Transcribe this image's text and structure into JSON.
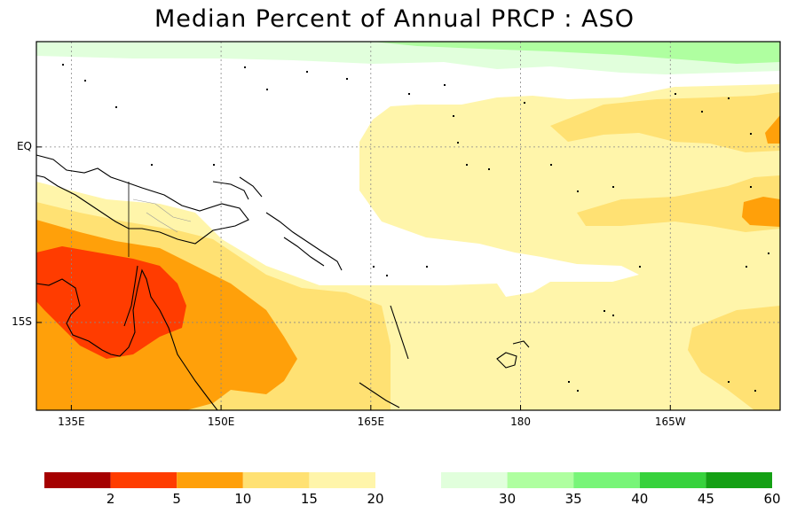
{
  "title": "Median Percent of Annual PRCP  :  ASO",
  "map": {
    "x_ticks": [
      {
        "label": "135E",
        "lon": 135
      },
      {
        "label": "150E",
        "lon": 150
      },
      {
        "label": "165E",
        "lon": 165
      },
      {
        "label": "180",
        "lon": 180
      },
      {
        "label": "165W",
        "lon": 195
      }
    ],
    "y_ticks": [
      {
        "label": "EQ",
        "lat": 0
      },
      {
        "label": "15S",
        "lat": -15
      }
    ],
    "lon_range": [
      131.5,
      206
    ],
    "lat_range": [
      -22.5,
      9
    ]
  },
  "colorbar": {
    "low": {
      "labels": [
        "2",
        "5",
        "10",
        "15",
        "20"
      ],
      "colors": [
        "#a50000",
        "#ff3c00",
        "#ffa00a",
        "#ffe173",
        "#fff5aa"
      ]
    },
    "high": {
      "labels": [
        "30",
        "35",
        "40",
        "45",
        "60"
      ],
      "colors": [
        "#e1ffdc",
        "#afffa0",
        "#78f578",
        "#37d23c",
        "#14a014"
      ]
    }
  }
}
